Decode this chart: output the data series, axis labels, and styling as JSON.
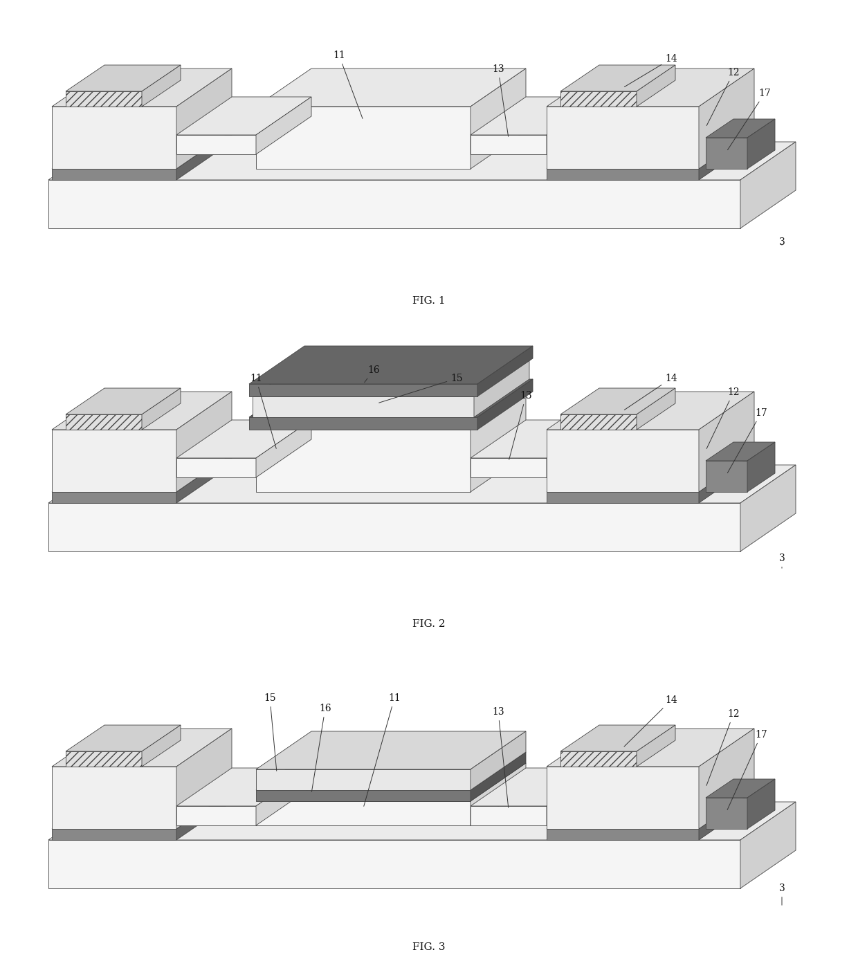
{
  "background_color": "#ffffff",
  "line_color": "#444444",
  "line_width": 0.6,
  "fig_labels": [
    "FIG. 1",
    "FIG. 2",
    "FIG. 3"
  ],
  "label_fontsize": 11,
  "annot_fontsize": 10,
  "colors": {
    "white": "#ffffff",
    "light_gray": "#f0f0f0",
    "mid_gray": "#d8d8d8",
    "dark_gray": "#888888",
    "darker_gray": "#666666",
    "hatch_gray": "#bbbbbb",
    "substrate_face": "#f5f5f5",
    "substrate_top": "#ebebeb",
    "substrate_side": "#d0d0d0",
    "electrode_face": "#f0f0f0",
    "electrode_top": "#e0e0e0",
    "electrode_side": "#cccccc",
    "dark_layer_face": "#888888",
    "dark_layer_top": "#777777",
    "dark_layer_side": "#666666",
    "beam_face": "#f5f5f5",
    "beam_top": "#e8e8e8",
    "beam_side": "#d5d5d5",
    "top_chip_face": "#e0e0e0",
    "top_chip_top": "#d0d0d0",
    "top_chip_side": "#c0c0c0",
    "evap_dark_face": "#777777",
    "evap_dark_top": "#666666",
    "evap_dark_side": "#555555",
    "evap_light_face": "#e8e8e8",
    "evap_light_top": "#d8d8d8",
    "evap_light_side": "#c8c8c8"
  }
}
